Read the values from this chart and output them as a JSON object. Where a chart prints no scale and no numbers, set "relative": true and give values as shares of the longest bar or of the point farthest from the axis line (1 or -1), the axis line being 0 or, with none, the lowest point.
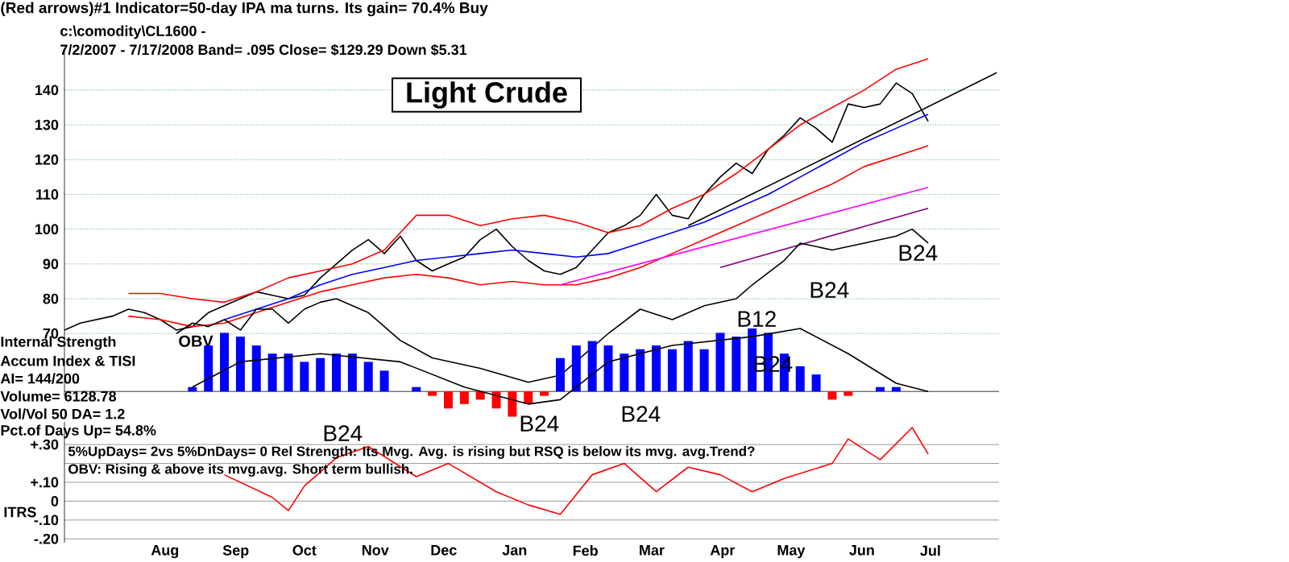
{
  "chart_data": [
    {
      "type": "line",
      "title": "(Red arrows)#1 Indicator=50-day IPA ma turns. Its gain= 70.4% Buy",
      "subtitle": "c:\\comodity\\CL1600  -",
      "annotations": [
        "7/2/2007 - 7/17/2008  Band= .095   Close= $129.29   Down $5.31",
        "Light Crude",
        "B24",
        "B24",
        "B12"
      ],
      "xlim": [
        "2007-07-02",
        "2008-08-14"
      ],
      "ylim": [
        52,
        152
      ],
      "yticks": [
        70,
        80,
        90,
        100,
        110,
        120,
        130,
        140
      ],
      "grid": "y",
      "tick_labels": "y",
      "series": [
        {
          "color": "#000000",
          "x": [
            "2007-07-02",
            "2007-07-09",
            "2007-07-16",
            "2007-07-23",
            "2007-07-30",
            "2007-08-06",
            "2007-08-13",
            "2007-08-20",
            "2007-08-27",
            "2007-09-03",
            "2007-09-10",
            "2007-09-17",
            "2007-09-24",
            "2007-10-01",
            "2007-10-08",
            "2007-10-15",
            "2007-10-22",
            "2007-10-29",
            "2007-11-05",
            "2007-11-12",
            "2007-11-19",
            "2007-11-26",
            "2007-12-03",
            "2007-12-10",
            "2007-12-17",
            "2007-12-24",
            "2007-12-31",
            "2008-01-07",
            "2008-01-14",
            "2008-01-21",
            "2008-01-28",
            "2008-02-04",
            "2008-02-11",
            "2008-02-18",
            "2008-02-25",
            "2008-03-03",
            "2008-03-10",
            "2008-03-17",
            "2008-03-24",
            "2008-03-31",
            "2008-04-07",
            "2008-04-14",
            "2008-04-21",
            "2008-04-28",
            "2008-05-05",
            "2008-05-12",
            "2008-05-19",
            "2008-05-26",
            "2008-06-02",
            "2008-06-09",
            "2008-06-16",
            "2008-06-23",
            "2008-06-30",
            "2008-07-07",
            "2008-07-14"
          ],
          "values": [
            71,
            73,
            74,
            75,
            77,
            76,
            74,
            71,
            72,
            76,
            78,
            80,
            82,
            81,
            80,
            81,
            86,
            90,
            94,
            97,
            93,
            98,
            91,
            88,
            90,
            92,
            97,
            100,
            95,
            91,
            88,
            87,
            89,
            94,
            99,
            101,
            104,
            110,
            104,
            103,
            110,
            115,
            119,
            116,
            123,
            127,
            132,
            129,
            125,
            136,
            135,
            136,
            142,
            139,
            131
          ]
        },
        {
          "color": "#ff0000",
          "x": [
            "2007-07-30",
            "2007-08-13",
            "2007-08-27",
            "2007-09-10",
            "2007-09-24",
            "2007-10-08",
            "2007-10-22",
            "2007-11-05",
            "2007-11-19",
            "2007-12-03",
            "2007-12-17",
            "2007-12-31",
            "2008-01-14",
            "2008-01-28",
            "2008-02-11",
            "2008-02-25",
            "2008-03-10",
            "2008-03-24",
            "2008-04-07",
            "2008-04-21",
            "2008-05-05",
            "2008-05-19",
            "2008-06-02",
            "2008-06-16",
            "2008-06-30",
            "2008-07-14"
          ],
          "values": [
            81.5,
            81.5,
            80,
            79,
            82,
            86,
            88,
            90,
            94,
            104,
            104,
            101,
            103,
            104,
            102,
            99,
            101,
            106,
            110,
            116,
            123,
            130,
            135,
            140,
            146,
            149
          ]
        },
        {
          "color": "#ff0000",
          "x": [
            "2007-07-30",
            "2007-08-13",
            "2007-08-27",
            "2007-09-10",
            "2007-09-24",
            "2007-10-08",
            "2007-10-22",
            "2007-11-05",
            "2007-11-19",
            "2007-12-03",
            "2007-12-17",
            "2007-12-31",
            "2008-01-14",
            "2008-01-28",
            "2008-02-11",
            "2008-02-25",
            "2008-03-10",
            "2008-03-24",
            "2008-04-07",
            "2008-04-21",
            "2008-05-05",
            "2008-05-19",
            "2008-06-02",
            "2008-06-16",
            "2008-06-30",
            "2008-07-14"
          ],
          "values": [
            75,
            74,
            72,
            73,
            76,
            79,
            82,
            84,
            86,
            87,
            86,
            84,
            85,
            84,
            84,
            86,
            89,
            93,
            97,
            101,
            105,
            109,
            113,
            118,
            121,
            124
          ]
        },
        {
          "color": "#0000ff",
          "x": [
            "2007-09-10",
            "2007-09-24",
            "2007-10-08",
            "2007-10-22",
            "2007-11-05",
            "2007-11-19",
            "2007-12-03",
            "2007-12-17",
            "2007-12-31",
            "2008-01-14",
            "2008-01-28",
            "2008-02-11",
            "2008-02-25",
            "2008-03-10",
            "2008-03-24",
            "2008-04-07",
            "2008-04-21",
            "2008-05-05",
            "2008-05-19",
            "2008-06-02",
            "2008-06-16",
            "2008-06-30",
            "2008-07-14"
          ],
          "values": [
            74,
            77,
            80,
            84,
            87,
            89,
            91,
            92,
            93,
            94,
            93,
            92,
            93,
            96,
            99,
            102,
            106,
            110,
            115,
            120,
            125,
            129,
            133
          ]
        },
        {
          "color": "#ff00ff",
          "x": [
            "2008-02-04",
            "2008-07-14"
          ],
          "values": [
            84,
            112
          ]
        },
        {
          "color": "#800080",
          "x": [
            "2008-04-14",
            "2008-07-14"
          ],
          "values": [
            89,
            106
          ]
        },
        {
          "color": "#000000",
          "x": [
            "2008-03-31",
            "2008-08-13"
          ],
          "values": [
            101,
            145
          ]
        },
        {
          "name": "OBV",
          "color": "#000000",
          "x": [
            "2007-08-20",
            "2007-08-27",
            "2007-09-03",
            "2007-09-10",
            "2007-09-17",
            "2007-09-24",
            "2007-10-01",
            "2007-10-08",
            "2007-10-15",
            "2007-10-22",
            "2007-10-29",
            "2007-11-12",
            "2007-11-26",
            "2007-12-10",
            "2007-12-31",
            "2008-01-21",
            "2008-02-04",
            "2008-02-11",
            "2008-02-25",
            "2008-03-10",
            "2008-03-24",
            "2008-04-07",
            "2008-04-21",
            "2008-04-28",
            "2008-05-12",
            "2008-05-19",
            "2008-06-02",
            "2008-06-16",
            "2008-06-30",
            "2008-07-07",
            "2008-07-14"
          ],
          "values": [
            70,
            73,
            72,
            74,
            71,
            77,
            77,
            73,
            77,
            79,
            80,
            76,
            68,
            63,
            60,
            56,
            58,
            62,
            70,
            77,
            74,
            78,
            80,
            84,
            91,
            96,
            94,
            96,
            98,
            100,
            96
          ]
        }
      ]
    },
    {
      "type": "bar",
      "relative": true,
      "xlim": [
        "2007-07-02",
        "2008-08-14"
      ],
      "tick_labels": false,
      "annotations": [
        "Internal Strength",
        "Accum Index & TISI",
        "AI= 144/200",
        "Volume= 6128.78",
        "Vol/Vol 50 DA= 1.2",
        "Pct.of Days Up= 54.8%",
        "B24",
        "B24",
        "B24"
      ],
      "series": [
        {
          "x": [
            "2007-08-27",
            "2007-09-03",
            "2007-09-10",
            "2007-09-17",
            "2007-09-24",
            "2007-10-01",
            "2007-10-08",
            "2007-10-15",
            "2007-10-22",
            "2007-10-29",
            "2007-11-05",
            "2007-11-12",
            "2007-11-19",
            "2007-11-26",
            "2007-12-03",
            "2007-12-10",
            "2007-12-17",
            "2007-12-24",
            "2007-12-31",
            "2008-01-07",
            "2008-01-14",
            "2008-01-21",
            "2008-01-28",
            "2008-02-04",
            "2008-02-11",
            "2008-02-18",
            "2008-02-25",
            "2008-03-03",
            "2008-03-10",
            "2008-03-17",
            "2008-03-24",
            "2008-03-31",
            "2008-04-07",
            "2008-04-14",
            "2008-04-21",
            "2008-04-28",
            "2008-05-05",
            "2008-05-12",
            "2008-05-19",
            "2008-05-26",
            "2008-06-02",
            "2008-06-09",
            "2008-06-16",
            "2008-06-23",
            "2008-06-30",
            "2008-07-07"
          ],
          "values": [
            0.07,
            0.73,
            0.93,
            0.87,
            0.73,
            0.6,
            0.6,
            0.47,
            0.53,
            0.6,
            0.6,
            0.47,
            0.33,
            0,
            0.07,
            -0.07,
            -0.27,
            -0.2,
            -0.13,
            -0.27,
            -0.4,
            -0.2,
            -0.07,
            0.53,
            0.73,
            0.8,
            0.73,
            0.6,
            0.67,
            0.73,
            0.67,
            0.8,
            0.67,
            0.93,
            0.87,
            1,
            0.93,
            0.6,
            0.4,
            0.27,
            -0.13,
            -0.07,
            0,
            0.07,
            0.07,
            0
          ],
          "colors": [
            "#0000ff",
            "#0000ff",
            "#0000ff",
            "#0000ff",
            "#0000ff",
            "#0000ff",
            "#0000ff",
            "#0000ff",
            "#0000ff",
            "#0000ff",
            "#0000ff",
            "#0000ff",
            "#0000ff",
            "#0000ff",
            "#0000ff",
            "#ff0000",
            "#ff0000",
            "#ff0000",
            "#ff0000",
            "#ff0000",
            "#ff0000",
            "#ff0000",
            "#ff0000",
            "#0000ff",
            "#0000ff",
            "#0000ff",
            "#0000ff",
            "#0000ff",
            "#0000ff",
            "#0000ff",
            "#0000ff",
            "#0000ff",
            "#0000ff",
            "#0000ff",
            "#0000ff",
            "#0000ff",
            "#0000ff",
            "#0000ff",
            "#0000ff",
            "#0000ff",
            "#ff0000",
            "#ff0000",
            "#0000ff",
            "#0000ff",
            "#0000ff",
            "#0000ff"
          ]
        },
        {
          "type": "line",
          "color": "#000000",
          "x": [
            "2007-08-27",
            "2007-09-17",
            "2007-10-22",
            "2007-11-26",
            "2007-12-24",
            "2008-01-21",
            "2008-02-04",
            "2008-02-25",
            "2008-03-24",
            "2008-04-28",
            "2008-05-19",
            "2008-06-09",
            "2008-06-30",
            "2008-07-14"
          ],
          "values": [
            0.07,
            0.47,
            0.6,
            0.47,
            0.07,
            -0.2,
            -0.13,
            0.47,
            0.73,
            0.87,
            1,
            0.6,
            0.13,
            0
          ]
        }
      ]
    },
    {
      "type": "line",
      "ylabel": "ITRS",
      "xlim": [
        "2007-07-02",
        "2008-08-14"
      ],
      "ylim": [
        -0.22,
        0.42
      ],
      "grid": "y",
      "yticks": [
        {
          "value": 0.3,
          "label": "+.30"
        },
        {
          "value": 0.2,
          "label": null
        },
        {
          "value": 0.1,
          "label": "+.10"
        },
        0,
        {
          "value": -0.1,
          "label": "-.10"
        },
        {
          "value": -0.2,
          "label": "-.20"
        }
      ],
      "xticks": [
        {
          "value": "2007-08-15",
          "label": "Aug"
        },
        {
          "value": "2007-09-15",
          "label": "Sep"
        },
        {
          "value": "2007-10-15",
          "label": "Oct"
        },
        {
          "value": "2007-11-15",
          "label": "Nov"
        },
        {
          "value": "2007-12-15",
          "label": "Dec"
        },
        {
          "value": "2008-01-15",
          "label": "Jan"
        },
        {
          "value": "2008-02-15",
          "label": "Feb"
        },
        {
          "value": "2008-03-15",
          "label": "Mar"
        },
        {
          "value": "2008-04-15",
          "label": "Apr"
        },
        {
          "value": "2008-05-15",
          "label": "May"
        },
        {
          "value": "2008-06-15",
          "label": "Jun"
        },
        {
          "value": "2008-07-15",
          "label": "Jul"
        }
      ],
      "annotations": [
        "5%UpDays= 2vs 5%DnDays= 0    Rel Strength: Its Mvg. Avg. is rising but RSQ is below its mvg. avg.Trend?",
        "OBV: Rising & above its mvg.avg. Short term bullish.",
        "B24"
      ],
      "series": [
        {
          "color": "#ff0000",
          "x": [
            "2007-09-10",
            "2007-10-01",
            "2007-10-08",
            "2007-10-15",
            "2007-10-29",
            "2007-11-12",
            "2007-12-03",
            "2007-12-17",
            "2008-01-07",
            "2008-01-21",
            "2008-02-04",
            "2008-02-18",
            "2008-03-03",
            "2008-03-17",
            "2008-03-31",
            "2008-04-14",
            "2008-04-28",
            "2008-05-12",
            "2008-06-02",
            "2008-06-09",
            "2008-06-23",
            "2008-07-07",
            "2008-07-14"
          ],
          "values": [
            0.14,
            0.02,
            -0.05,
            0.08,
            0.23,
            0.29,
            0.13,
            0.2,
            0.05,
            -0.02,
            -0.07,
            0.14,
            0.2,
            0.05,
            0.18,
            0.14,
            0.05,
            0.12,
            0.2,
            0.33,
            0.22,
            0.39,
            0.25
          ]
        }
      ]
    }
  ]
}
